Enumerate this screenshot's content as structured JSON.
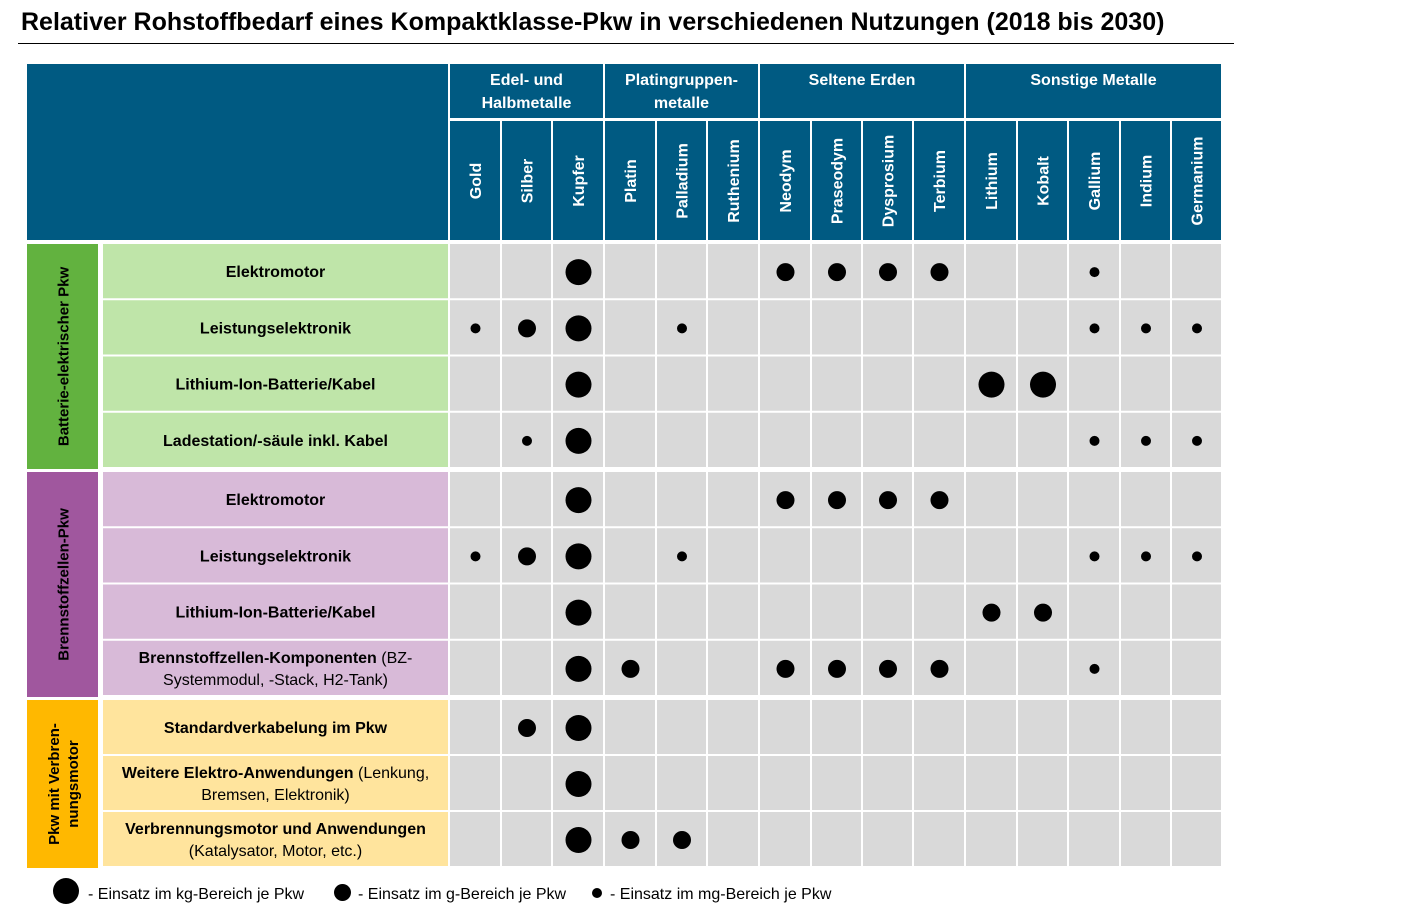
{
  "title": "Relativer Rohstoffbedarf eines Kompaktklasse-Pkw in verschiedenen Nutzungen (2018 bis 2030)",
  "colors": {
    "header_blue": "#005A82",
    "cell_grey": "#D9D9D9",
    "bev_dark": "#62B23F",
    "bev_light": "#BFE5A9",
    "fcev_dark": "#A0579E",
    "fcev_light": "#D8BAD8",
    "ice_dark": "#FFB800",
    "ice_light": "#FFE49D"
  },
  "chart_data": {
    "type": "table",
    "scale": {
      "3": "kg",
      "2": "g",
      "1": "mg"
    },
    "column_groups": [
      {
        "name": "Edel- und Halbmetalle",
        "lines": [
          "Edel- und",
          "Halbmetalle"
        ],
        "span": 3
      },
      {
        "name": "Platingruppen-metalle",
        "lines": [
          "Platingruppen-",
          "metalle"
        ],
        "span": 3
      },
      {
        "name": "Seltene Erden",
        "lines": [
          "Seltene Erden"
        ],
        "span": 4
      },
      {
        "name": "Sonstige Metalle",
        "lines": [
          "Sonstige Metalle"
        ],
        "span": 5
      }
    ],
    "columns": [
      "Gold",
      "Silber",
      "Kupfer",
      "Platin",
      "Palladium",
      "Ruthenium",
      "Neodym",
      "Praseodym",
      "Dysprosium",
      "Terbium",
      "Lithium",
      "Kobalt",
      "Gallium",
      "Indium",
      "Germanium"
    ],
    "row_groups": [
      {
        "name": "Batterie-elektrischer Pkw",
        "label_lines": [
          "Batterie-elektrischer Pkw"
        ],
        "theme": "bev",
        "rows": [
          {
            "bold": "Elektromotor",
            "rest": "",
            "values": [
              0,
              0,
              3,
              0,
              0,
              0,
              2,
              2,
              2,
              2,
              0,
              0,
              1,
              0,
              0
            ]
          },
          {
            "bold": "Leistungselektronik",
            "rest": "",
            "values": [
              1,
              2,
              3,
              0,
              1,
              0,
              0,
              0,
              0,
              0,
              0,
              0,
              1,
              1,
              1
            ]
          },
          {
            "bold": "Lithium-Ion-Batterie/Kabel",
            "rest": "",
            "values": [
              0,
              0,
              3,
              0,
              0,
              0,
              0,
              0,
              0,
              0,
              3,
              3,
              0,
              0,
              0
            ]
          },
          {
            "bold": "Ladestation/-säule inkl. Kabel",
            "rest": "",
            "values": [
              0,
              1,
              3,
              0,
              0,
              0,
              0,
              0,
              0,
              0,
              0,
              0,
              1,
              1,
              1
            ]
          }
        ]
      },
      {
        "name": "Brennstoffzellen-Pkw",
        "label_lines": [
          "Brennstoffzellen-Pkw"
        ],
        "theme": "fcev",
        "rows": [
          {
            "bold": "Elektromotor",
            "rest": "",
            "values": [
              0,
              0,
              3,
              0,
              0,
              0,
              2,
              2,
              2,
              2,
              0,
              0,
              0,
              0,
              0
            ]
          },
          {
            "bold": "Leistungselektronik",
            "rest": "",
            "values": [
              1,
              2,
              3,
              0,
              1,
              0,
              0,
              0,
              0,
              0,
              0,
              0,
              1,
              1,
              1
            ]
          },
          {
            "bold": "Lithium-Ion-Batterie/Kabel",
            "rest": "",
            "values": [
              0,
              0,
              3,
              0,
              0,
              0,
              0,
              0,
              0,
              0,
              2,
              2,
              0,
              0,
              0
            ]
          },
          {
            "bold": "Brennstoffzellen-Komponenten",
            "rest": " (BZ-Systemmodul, -Stack, H2-Tank)",
            "lines": [
              [
                "Brennstoffzellen-Komponenten",
                " (BZ-"
              ],
              [
                "",
                "Systemmodul, -Stack, H2-Tank)"
              ]
            ],
            "values": [
              0,
              0,
              3,
              2,
              0,
              0,
              2,
              2,
              2,
              2,
              0,
              0,
              1,
              0,
              0
            ]
          }
        ]
      },
      {
        "name": "Pkw mit Verbrennungsmotor",
        "label_lines": [
          "Pkw mit Verbren-",
          "nungsmotor"
        ],
        "theme": "ice",
        "rows": [
          {
            "bold": "Standardverkabelung im Pkw",
            "rest": "",
            "values": [
              0,
              2,
              3,
              0,
              0,
              0,
              0,
              0,
              0,
              0,
              0,
              0,
              0,
              0,
              0
            ]
          },
          {
            "bold": "Weitere Elektro-Anwendungen",
            "rest": " (Lenkung, Bremsen, Elektronik)",
            "lines": [
              [
                "Weitere Elektro-Anwendungen",
                " (Lenkung,"
              ],
              [
                "",
                "Bremsen, Elektronik)"
              ]
            ],
            "values": [
              0,
              0,
              3,
              0,
              0,
              0,
              0,
              0,
              0,
              0,
              0,
              0,
              0,
              0,
              0
            ]
          },
          {
            "bold": "Verbrennungsmotor und Anwendungen",
            "rest": " (Katalysator, Motor, etc.)",
            "lines": [
              [
                "Verbrennungsmotor und Anwendungen",
                ""
              ],
              [
                "",
                "(Katalysator, Motor, etc.)"
              ]
            ],
            "values": [
              0,
              0,
              3,
              2,
              2,
              0,
              0,
              0,
              0,
              0,
              0,
              0,
              0,
              0,
              0
            ]
          }
        ]
      }
    ],
    "legend": [
      {
        "level": 3,
        "label": "- Einsatz im kg-Bereich je Pkw"
      },
      {
        "level": 2,
        "label": "- Einsatz im g-Bereich je Pkw"
      },
      {
        "level": 1,
        "label": "- Einsatz im mg-Bereich je Pkw"
      }
    ]
  }
}
